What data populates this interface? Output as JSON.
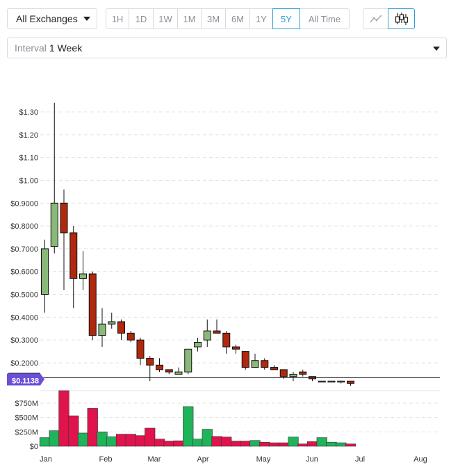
{
  "toolbar": {
    "exchange": "All Exchanges",
    "ranges": [
      "1H",
      "1D",
      "1W",
      "1M",
      "3M",
      "6M",
      "1Y",
      "5Y",
      "All Time"
    ],
    "active_range": "5Y",
    "chart_modes": [
      "line-chart-icon",
      "candlestick-chart-icon"
    ],
    "active_mode": "candlestick-chart-icon"
  },
  "interval": {
    "label": "Interval",
    "value": "1 Week"
  },
  "current_price": "$0.1138",
  "colors": {
    "up": "#8ab878",
    "down": "#b0280e",
    "vol_up": "#1fb35a",
    "vol_down": "#e0134c",
    "price_line": "#222222",
    "badge": "#6b4fd8"
  },
  "chart_data": {
    "type": "candlestick",
    "price_axis": {
      "ylim": [
        0.1,
        1.35
      ],
      "ticks": [
        "$0.2000",
        "$0.3000",
        "$0.4000",
        "$0.5000",
        "$0.6000",
        "$0.7000",
        "$0.8000",
        "$0.9000",
        "$1.00",
        "$1.10",
        "$1.20",
        "$1.30"
      ]
    },
    "volume_axis": {
      "ylim": [
        0,
        900
      ],
      "ticks": [
        "$0",
        "$250M",
        "$500M",
        "$750M"
      ]
    },
    "x_ticks": [
      "Jan",
      "Feb",
      "Mar",
      "Apr",
      "May",
      "Jun",
      "Jul",
      "Aug"
    ],
    "candles": [
      {
        "o": 0.5,
        "h": 0.74,
        "l": 0.42,
        "c": 0.7
      },
      {
        "o": 0.71,
        "h": 1.34,
        "l": 0.68,
        "c": 0.9
      },
      {
        "o": 0.9,
        "h": 0.96,
        "l": 0.52,
        "c": 0.77
      },
      {
        "o": 0.77,
        "h": 0.8,
        "l": 0.44,
        "c": 0.57
      },
      {
        "o": 0.57,
        "h": 0.69,
        "l": 0.52,
        "c": 0.59
      },
      {
        "o": 0.59,
        "h": 0.6,
        "l": 0.3,
        "c": 0.32
      },
      {
        "o": 0.32,
        "h": 0.44,
        "l": 0.27,
        "c": 0.37
      },
      {
        "o": 0.37,
        "h": 0.42,
        "l": 0.35,
        "c": 0.38
      },
      {
        "o": 0.38,
        "h": 0.39,
        "l": 0.3,
        "c": 0.33
      },
      {
        "o": 0.33,
        "h": 0.34,
        "l": 0.29,
        "c": 0.3
      },
      {
        "o": 0.3,
        "h": 0.31,
        "l": 0.19,
        "c": 0.22
      },
      {
        "o": 0.22,
        "h": 0.23,
        "l": 0.12,
        "c": 0.19
      },
      {
        "o": 0.19,
        "h": 0.22,
        "l": 0.16,
        "c": 0.17
      },
      {
        "o": 0.17,
        "h": 0.17,
        "l": 0.15,
        "c": 0.16
      },
      {
        "o": 0.15,
        "h": 0.18,
        "l": 0.15,
        "c": 0.16
      },
      {
        "o": 0.16,
        "h": 0.26,
        "l": 0.15,
        "c": 0.26
      },
      {
        "o": 0.27,
        "h": 0.31,
        "l": 0.25,
        "c": 0.29
      },
      {
        "o": 0.3,
        "h": 0.39,
        "l": 0.27,
        "c": 0.34
      },
      {
        "o": 0.34,
        "h": 0.39,
        "l": 0.33,
        "c": 0.33
      },
      {
        "o": 0.33,
        "h": 0.34,
        "l": 0.24,
        "c": 0.27
      },
      {
        "o": 0.27,
        "h": 0.28,
        "l": 0.24,
        "c": 0.26
      },
      {
        "o": 0.25,
        "h": 0.25,
        "l": 0.17,
        "c": 0.18
      },
      {
        "o": 0.18,
        "h": 0.24,
        "l": 0.18,
        "c": 0.21
      },
      {
        "o": 0.21,
        "h": 0.22,
        "l": 0.17,
        "c": 0.18
      },
      {
        "o": 0.18,
        "h": 0.19,
        "l": 0.17,
        "c": 0.17
      },
      {
        "o": 0.17,
        "h": 0.17,
        "l": 0.13,
        "c": 0.14
      },
      {
        "o": 0.14,
        "h": 0.16,
        "l": 0.12,
        "c": 0.15
      },
      {
        "o": 0.16,
        "h": 0.17,
        "l": 0.14,
        "c": 0.15
      },
      {
        "o": 0.14,
        "h": 0.14,
        "l": 0.12,
        "c": 0.13
      },
      {
        "o": 0.12,
        "h": 0.12,
        "l": 0.12,
        "c": 0.12
      },
      {
        "o": 0.12,
        "h": 0.12,
        "l": 0.12,
        "c": 0.12
      },
      {
        "o": 0.12,
        "h": 0.12,
        "l": 0.11,
        "c": 0.12
      },
      {
        "o": 0.12,
        "h": 0.12,
        "l": 0.1,
        "c": 0.11
      }
    ],
    "volume": [
      {
        "v": 150,
        "up": true
      },
      {
        "v": 270,
        "up": true
      },
      {
        "v": 1000,
        "up": false
      },
      {
        "v": 530,
        "up": false
      },
      {
        "v": 230,
        "up": true
      },
      {
        "v": 660,
        "up": false
      },
      {
        "v": 250,
        "up": true
      },
      {
        "v": 165,
        "up": true
      },
      {
        "v": 210,
        "up": false
      },
      {
        "v": 210,
        "up": false
      },
      {
        "v": 185,
        "up": false
      },
      {
        "v": 315,
        "up": false
      },
      {
        "v": 125,
        "up": false
      },
      {
        "v": 90,
        "up": false
      },
      {
        "v": 95,
        "up": false
      },
      {
        "v": 690,
        "up": true
      },
      {
        "v": 125,
        "up": true
      },
      {
        "v": 295,
        "up": true
      },
      {
        "v": 170,
        "up": false
      },
      {
        "v": 160,
        "up": false
      },
      {
        "v": 90,
        "up": false
      },
      {
        "v": 90,
        "up": false
      },
      {
        "v": 100,
        "up": true
      },
      {
        "v": 70,
        "up": false
      },
      {
        "v": 60,
        "up": false
      },
      {
        "v": 60,
        "up": false
      },
      {
        "v": 160,
        "up": true
      },
      {
        "v": 40,
        "up": false
      },
      {
        "v": 80,
        "up": false
      },
      {
        "v": 150,
        "up": true
      },
      {
        "v": 70,
        "up": true
      },
      {
        "v": 60,
        "up": true
      },
      {
        "v": 40,
        "up": false
      }
    ]
  }
}
